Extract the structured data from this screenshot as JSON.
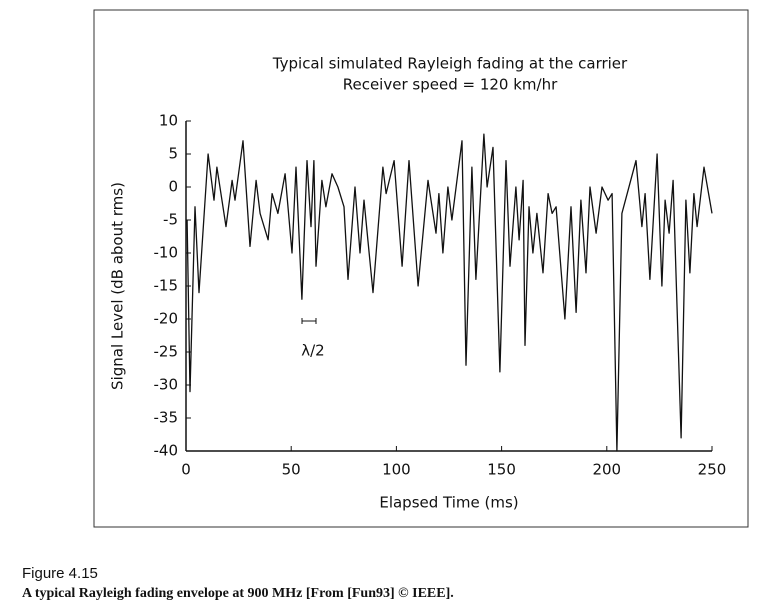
{
  "chart_data": {
    "type": "line",
    "title": "Typical simulated Rayleigh fading at the carrier",
    "subtitle": "Receiver speed = 120 km/hr",
    "xlabel": "Elapsed Time (ms)",
    "ylabel": "Signal Level (dB about rms)",
    "annotation": "λ/2",
    "figure_label": "Figure 4.15",
    "caption": "A typical Rayleigh fading envelope at 900 MHz [From [Fun93] © IEEE].",
    "color": "#111111",
    "x": [
      0.5,
      1.9,
      4.3,
      6.2,
      10.5,
      13.3,
      14.7,
      19,
      21.9,
      23.3,
      27.1,
      30.4,
      33.3,
      35.2,
      39,
      40.9,
      43.7,
      47.1,
      50.4,
      52.3,
      55.1,
      57.5,
      59.4,
      60.8,
      61.8,
      64.6,
      66.5,
      69.4,
      72.2,
      75.1,
      77,
      80.3,
      82.7,
      84.6,
      88.9,
      93.6,
      95.1,
      98.9,
      102.7,
      106,
      110.3,
      115,
      118.8,
      120.2,
      122.1,
      124.5,
      126.4,
      131.2,
      133.1,
      135.9,
      137.8,
      141.6,
      143.1,
      145.9,
      149.2,
      152.1,
      154,
      156.8,
      158.3,
      160.2,
      161.1,
      163,
      164.9,
      166.8,
      169.7,
      172.1,
      174,
      175.9,
      180.1,
      183,
      185.4,
      187.7,
      190.1,
      192,
      194.9,
      197.7,
      200.6,
      202.5,
      204.8,
      207.2,
      213.9,
      216.7,
      218.2,
      220.5,
      223.9,
      226.2,
      227.7,
      229.6,
      231.5,
      235.3,
      237.6,
      239.5,
      241.4,
      242.9,
      246.2,
      250
    ],
    "values": [
      -5,
      -31,
      -3,
      -16,
      5,
      -2,
      3,
      -6,
      1,
      -2,
      7,
      -9,
      1,
      -4,
      -8,
      -1,
      -4,
      2,
      -10,
      3,
      -17,
      4,
      -6,
      4,
      -12,
      1,
      -3,
      2,
      0,
      -3,
      -14,
      0,
      -10,
      -2,
      -16,
      3,
      -1,
      4,
      -12,
      4,
      -15,
      1,
      -7,
      -1,
      -10,
      0,
      -5,
      7,
      -27,
      3,
      -14,
      8,
      0,
      6,
      -28,
      4,
      -12,
      0,
      -8,
      1,
      -24,
      -3,
      -10,
      -4,
      -13,
      -1,
      -4,
      -3,
      -20,
      -3,
      -19,
      -2,
      -13,
      0,
      -7,
      0,
      -2,
      -1,
      -40,
      -4,
      4,
      -6,
      -1,
      -14,
      5,
      -15,
      -2,
      -7,
      1,
      -38,
      -2,
      -13,
      -1,
      -6,
      3,
      -4
    ],
    "xlim": [
      0,
      250
    ],
    "xticks": [
      0,
      50,
      100,
      150,
      200,
      250
    ],
    "ylim": [
      -40,
      10
    ],
    "yticks": [
      -40,
      -35,
      -30,
      -25,
      -20,
      -15,
      -10,
      -5,
      0,
      5,
      10
    ]
  }
}
